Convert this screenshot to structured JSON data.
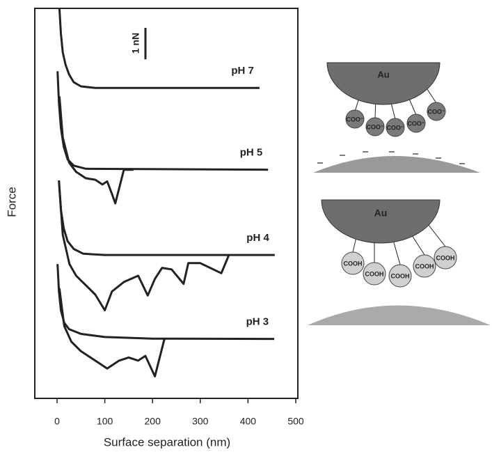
{
  "chart_data": {
    "type": "line",
    "x_label": "Surface separation (nm)",
    "y_label": "Force",
    "xlim": [
      0,
      500
    ],
    "xticks": [
      0,
      100,
      200,
      300,
      400,
      500
    ],
    "ylim": [
      0,
      12.4
    ],
    "scale_bar": {
      "label": "1 nN",
      "value": 1
    },
    "color": "#222222",
    "series": [
      {
        "name": "pH 7",
        "x": [
          5,
          8,
          12,
          18,
          25,
          35,
          50,
          80,
          424
        ],
        "values": [
          12.4,
          11.6,
          11.0,
          10.6,
          10.3,
          10.05,
          9.92,
          9.87,
          9.87
        ]
      },
      {
        "name": "pH 5",
        "x": [
          1,
          4,
          8,
          14,
          22,
          35,
          60,
          442
        ],
        "values": [
          10.4,
          9.4,
          8.6,
          8.0,
          7.6,
          7.4,
          7.3,
          7.27
        ],
        "retract_x": [
          5,
          12,
          25,
          40,
          60,
          80,
          95,
          105,
          115,
          122,
          140,
          160
        ],
        "retract_values": [
          9.6,
          8.3,
          7.5,
          7.2,
          7.0,
          6.95,
          6.8,
          6.9,
          6.5,
          6.2,
          7.27,
          7.27
        ]
      },
      {
        "name": "pH 4",
        "x": [
          4,
          8,
          14,
          22,
          35,
          55,
          100,
          456
        ],
        "values": [
          6.93,
          6.0,
          5.4,
          5.0,
          4.75,
          4.6,
          4.56,
          4.56
        ],
        "retract_x": [
          4,
          12,
          26,
          40,
          60,
          80,
          100,
          115,
          140,
          170,
          190,
          205,
          220,
          240,
          265,
          275,
          300,
          344,
          360
        ],
        "retract_values": [
          6.9,
          5.2,
          4.27,
          3.9,
          3.6,
          3.3,
          2.8,
          3.4,
          3.7,
          3.9,
          3.27,
          3.8,
          4.15,
          4.1,
          3.64,
          4.3,
          4.3,
          3.98,
          4.56
        ]
      },
      {
        "name": "pH 3",
        "x": [
          1,
          4,
          8,
          15,
          25,
          50,
          100,
          200,
          455
        ],
        "values": [
          4.27,
          3.4,
          2.8,
          2.4,
          2.2,
          2.05,
          1.95,
          1.9,
          1.89
        ],
        "retract_x": [
          5,
          15,
          30,
          50,
          80,
          105,
          130,
          150,
          170,
          185,
          205,
          225
        ],
        "retract_values": [
          3.5,
          2.3,
          1.8,
          1.5,
          1.2,
          0.95,
          1.2,
          1.3,
          1.2,
          1.35,
          0.7,
          1.89
        ]
      }
    ]
  },
  "schematic": {
    "top": {
      "metal": "Au",
      "groups": [
        "COO⁻",
        "COO⁻",
        "COO⁻",
        "COO⁻",
        "COO⁻"
      ]
    },
    "bottom": {
      "metal": "Au",
      "groups": [
        "COOH",
        "COOH",
        "COOH",
        "COOH",
        "COOH"
      ]
    }
  }
}
